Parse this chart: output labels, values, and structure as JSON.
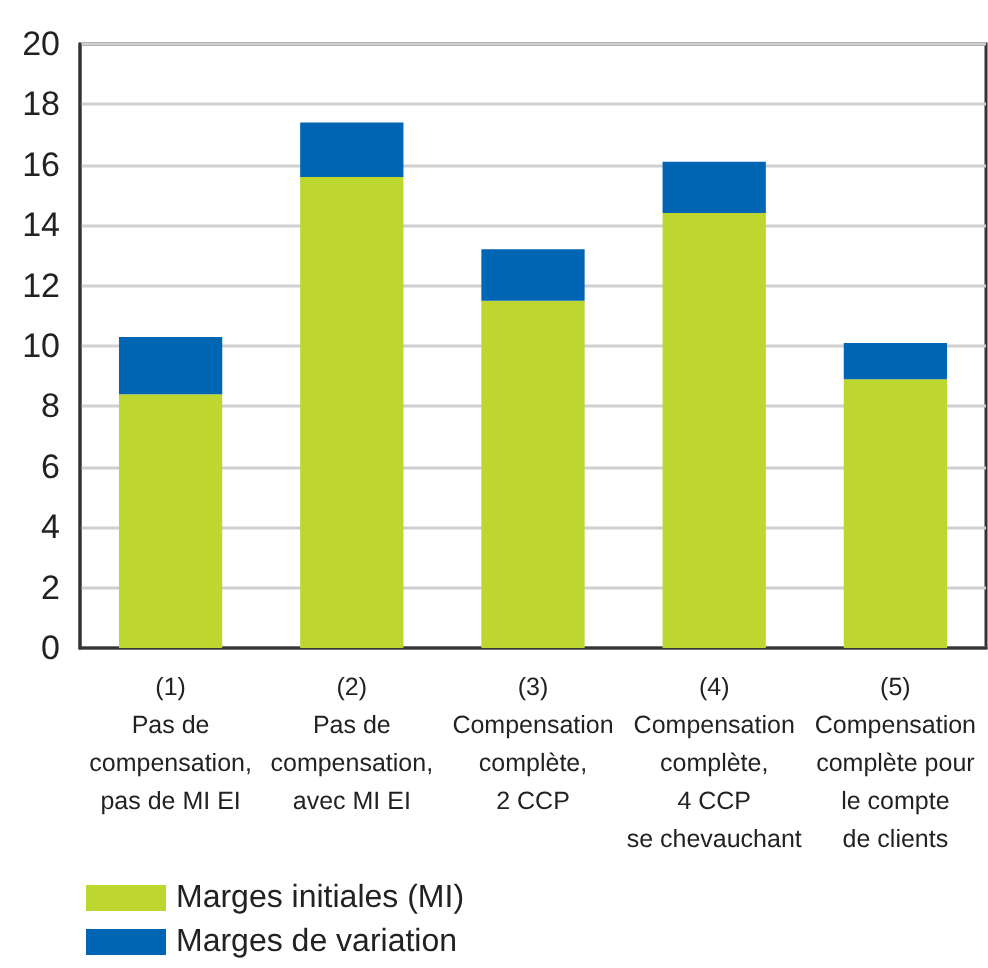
{
  "chart_data": {
    "type": "bar",
    "stacked": true,
    "categories": [
      "(1)\nPas de\ncompensation,\npas de MI EI",
      "(2)\nPas de\ncompensation,\navec MI EI",
      "(3)\nCompensation\ncomplète,\n2 CCP",
      "(4)\nCompensation\ncomplète,\n4 CCP\nse chevauchant",
      "(5)\nCompensation\ncomplète pour\nle compte\nde clients"
    ],
    "series": [
      {
        "name": "Marges initiales (MI)",
        "color": "#bed630",
        "values": [
          8.4,
          15.6,
          11.5,
          14.4,
          8.9
        ]
      },
      {
        "name": "Marges de variation",
        "color": "#0066b3",
        "values": [
          1.9,
          1.8,
          1.7,
          1.7,
          1.2
        ]
      }
    ],
    "ylim": [
      0,
      20
    ],
    "yticks": [
      0,
      2,
      4,
      6,
      8,
      10,
      12,
      14,
      16,
      18,
      20
    ],
    "grid": "y",
    "legend": "bottom left"
  }
}
